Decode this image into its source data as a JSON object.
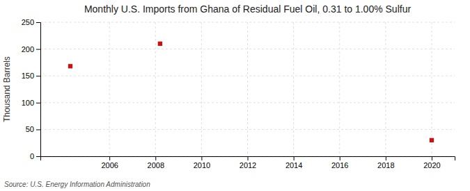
{
  "chart_data": {
    "type": "scatter",
    "title": "Monthly U.S. Imports from Ghana of Residual Fuel Oil, 0.31 to 1.00% Sulfur",
    "ylabel": "Thousand Barrels",
    "source": "Source: U.S. Energy Information Administration",
    "x": [
      2004.3,
      2008.2,
      2020.0
    ],
    "values": [
      168,
      210,
      30
    ],
    "color": "#cc1111",
    "marker": "square",
    "xlim": [
      2003.0,
      2021.0
    ],
    "ylim": [
      0,
      250
    ],
    "xticks": [
      2006,
      2008,
      2010,
      2012,
      2014,
      2016,
      2018,
      2020
    ],
    "yticks": [
      0,
      50,
      100,
      150,
      200,
      250
    ],
    "grid": true
  }
}
